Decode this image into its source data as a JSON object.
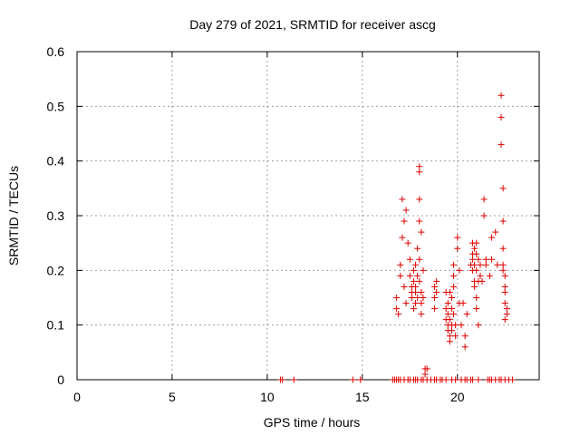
{
  "chart_data": {
    "type": "scatter",
    "title": "Day 279 of 2021, SRMTID for receiver ascg",
    "xlabel": "GPS time / hours",
    "ylabel": "SRMTID / TECUs",
    "xlim": [
      0,
      24.3
    ],
    "ylim": [
      0,
      0.6
    ],
    "x_ticks": [
      0,
      5,
      10,
      15,
      20
    ],
    "x_tick_labels": [
      "0",
      "5",
      "10",
      "15",
      "20"
    ],
    "y_ticks": [
      0,
      0.1,
      0.2,
      0.3,
      0.4,
      0.5,
      0.6
    ],
    "y_tick_labels": [
      "0",
      "0.1",
      "0.2",
      "0.3",
      "0.4",
      "0.5",
      "0.6"
    ],
    "grid": true,
    "marker": "+",
    "color": "#e00000",
    "series": [
      {
        "name": "SRMTID",
        "points": [
          [
            10.7,
            0
          ],
          [
            10.8,
            0
          ],
          [
            11.4,
            0
          ],
          [
            14.5,
            0
          ],
          [
            14.9,
            0
          ],
          [
            16.6,
            0
          ],
          [
            16.7,
            0
          ],
          [
            16.8,
            0
          ],
          [
            16.9,
            0
          ],
          [
            17.0,
            0
          ],
          [
            17.2,
            0
          ],
          [
            17.4,
            0
          ],
          [
            17.5,
            0
          ],
          [
            17.7,
            0
          ],
          [
            17.8,
            0
          ],
          [
            17.9,
            0
          ],
          [
            18.1,
            0
          ],
          [
            18.2,
            0
          ],
          [
            18.4,
            0
          ],
          [
            18.6,
            0
          ],
          [
            18.8,
            0
          ],
          [
            18.9,
            0
          ],
          [
            19.1,
            0
          ],
          [
            19.2,
            0
          ],
          [
            19.4,
            0
          ],
          [
            19.7,
            0
          ],
          [
            19.9,
            0
          ],
          [
            20.2,
            0
          ],
          [
            20.4,
            0
          ],
          [
            20.5,
            0
          ],
          [
            20.7,
            0
          ],
          [
            20.8,
            0
          ],
          [
            21.1,
            0
          ],
          [
            21.6,
            0
          ],
          [
            21.7,
            0
          ],
          [
            21.8,
            0
          ],
          [
            22.0,
            0
          ],
          [
            22.2,
            0
          ],
          [
            22.3,
            0
          ],
          [
            22.5,
            0
          ],
          [
            22.7,
            0
          ],
          [
            22.9,
            0
          ],
          [
            16.8,
            0.13
          ],
          [
            16.8,
            0.15
          ],
          [
            16.9,
            0.12
          ],
          [
            17.0,
            0.19
          ],
          [
            17.0,
            0.21
          ],
          [
            17.1,
            0.26
          ],
          [
            17.1,
            0.33
          ],
          [
            17.2,
            0.29
          ],
          [
            17.3,
            0.31
          ],
          [
            17.2,
            0.17
          ],
          [
            17.3,
            0.14
          ],
          [
            17.4,
            0.25
          ],
          [
            17.5,
            0.22
          ],
          [
            17.5,
            0.19
          ],
          [
            17.6,
            0.17
          ],
          [
            17.6,
            0.16
          ],
          [
            17.6,
            0.15
          ],
          [
            17.7,
            0.18
          ],
          [
            17.7,
            0.2
          ],
          [
            17.7,
            0.13
          ],
          [
            17.8,
            0.16
          ],
          [
            17.8,
            0.21
          ],
          [
            17.8,
            0.17
          ],
          [
            17.8,
            0.14
          ],
          [
            17.9,
            0.24
          ],
          [
            17.9,
            0.19
          ],
          [
            17.9,
            0.15
          ],
          [
            18.0,
            0.39
          ],
          [
            18.0,
            0.38
          ],
          [
            18.0,
            0.33
          ],
          [
            18.0,
            0.29
          ],
          [
            18.1,
            0.27
          ],
          [
            18.0,
            0.22
          ],
          [
            18.0,
            0.18
          ],
          [
            18.1,
            0.16
          ],
          [
            18.1,
            0.14
          ],
          [
            18.1,
            0.12
          ],
          [
            18.2,
            0.2
          ],
          [
            18.2,
            0.15
          ],
          [
            18.3,
            0.02
          ],
          [
            18.3,
            0.01
          ],
          [
            18.4,
            0.02
          ],
          [
            18.8,
            0.17
          ],
          [
            18.8,
            0.15
          ],
          [
            18.8,
            0.13
          ],
          [
            18.9,
            0.18
          ],
          [
            18.9,
            0.16
          ],
          [
            19.4,
            0.16
          ],
          [
            19.4,
            0.13
          ],
          [
            19.4,
            0.11
          ],
          [
            19.5,
            0.14
          ],
          [
            19.5,
            0.12
          ],
          [
            19.5,
            0.1
          ],
          [
            19.5,
            0.09
          ],
          [
            19.6,
            0.16
          ],
          [
            19.6,
            0.11
          ],
          [
            19.6,
            0.08
          ],
          [
            19.6,
            0.07
          ],
          [
            19.7,
            0.15
          ],
          [
            19.7,
            0.13
          ],
          [
            19.7,
            0.1
          ],
          [
            19.7,
            0.09
          ],
          [
            19.8,
            0.21
          ],
          [
            19.8,
            0.19
          ],
          [
            19.8,
            0.17
          ],
          [
            19.8,
            0.12
          ],
          [
            19.9,
            0.1
          ],
          [
            19.9,
            0.08
          ],
          [
            20.0,
            0.26
          ],
          [
            20.0,
            0.24
          ],
          [
            20.1,
            0.2
          ],
          [
            20.1,
            0.14
          ],
          [
            20.2,
            0.1
          ],
          [
            20.3,
            0.14
          ],
          [
            20.4,
            0.06
          ],
          [
            20.4,
            0.08
          ],
          [
            20.5,
            0.12
          ],
          [
            20.7,
            0.21
          ],
          [
            20.8,
            0.25
          ],
          [
            20.8,
            0.23
          ],
          [
            20.8,
            0.22
          ],
          [
            20.8,
            0.2
          ],
          [
            20.9,
            0.24
          ],
          [
            20.9,
            0.21
          ],
          [
            20.9,
            0.18
          ],
          [
            20.9,
            0.17
          ],
          [
            21.0,
            0.25
          ],
          [
            21.0,
            0.23
          ],
          [
            21.0,
            0.2
          ],
          [
            21.0,
            0.15
          ],
          [
            21.0,
            0.13
          ],
          [
            21.1,
            0.22
          ],
          [
            21.1,
            0.18
          ],
          [
            21.1,
            0.1
          ],
          [
            21.2,
            0.21
          ],
          [
            21.2,
            0.19
          ],
          [
            21.3,
            0.18
          ],
          [
            21.4,
            0.33
          ],
          [
            21.4,
            0.3
          ],
          [
            21.5,
            0.22
          ],
          [
            21.5,
            0.21
          ],
          [
            21.7,
            0.19
          ],
          [
            21.8,
            0.26
          ],
          [
            21.8,
            0.22
          ],
          [
            22.0,
            0.27
          ],
          [
            22.1,
            0.21
          ],
          [
            22.3,
            0.52
          ],
          [
            22.3,
            0.48
          ],
          [
            22.3,
            0.43
          ],
          [
            22.4,
            0.35
          ],
          [
            22.4,
            0.29
          ],
          [
            22.4,
            0.24
          ],
          [
            22.4,
            0.21
          ],
          [
            22.4,
            0.2
          ],
          [
            22.5,
            0.19
          ],
          [
            22.5,
            0.17
          ],
          [
            22.5,
            0.16
          ],
          [
            22.5,
            0.14
          ],
          [
            22.6,
            0.13
          ],
          [
            22.6,
            0.12
          ],
          [
            22.5,
            0.11
          ]
        ]
      }
    ]
  }
}
